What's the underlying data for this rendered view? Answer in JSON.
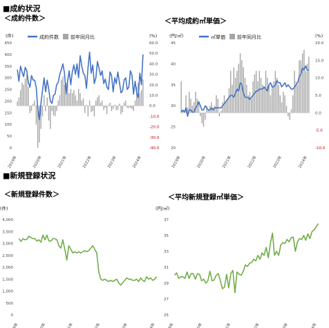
{
  "section1": {
    "title": "■成約状況"
  },
  "section2": {
    "title": "■新規登録状況"
  },
  "chart_data": [
    {
      "type": "bar+line",
      "title": "＜成約件数＞",
      "ylabel_left": "(件)",
      "ylabel_right": "(%)",
      "legend": [
        "成約件数",
        "前年同月比"
      ],
      "legend_position": "top",
      "ylim_left": [
        0,
        450
      ],
      "ylim_right": [
        -40,
        60
      ],
      "yticks_left": [
        "0",
        "50",
        "100",
        "150",
        "200",
        "250",
        "300",
        "350",
        "400",
        "450"
      ],
      "yticks_right": [
        "-40.0",
        "-30.0",
        "-20.0",
        "-10.0",
        "0.0",
        "10.0",
        "20.0",
        "30.0",
        "40.0",
        "50.0",
        "60.0"
      ],
      "x_labels": [
        "2019年",
        "2020年",
        "2021年",
        "2022年",
        "2023年",
        "2024年"
      ],
      "x_range": [
        2019.5,
        2024.6
      ],
      "series": [
        {
          "name": "成約件数",
          "color": "#4472C4",
          "values": [
            335,
            285,
            350,
            325,
            305,
            345,
            330,
            280,
            260,
            310,
            290,
            290,
            260,
            165,
            120,
            190,
            245,
            300,
            240,
            290,
            250,
            200,
            190,
            225,
            230,
            270,
            280,
            315,
            335,
            360,
            320,
            230,
            285,
            330,
            270,
            325,
            355,
            315,
            360,
            300,
            395,
            350,
            320,
            310,
            255,
            345,
            410,
            320,
            355,
            275,
            300,
            370,
            340,
            310,
            330,
            275,
            295,
            260,
            250,
            325,
            310,
            240,
            300,
            275,
            325,
            280,
            235,
            245,
            290,
            300,
            250,
            260,
            330,
            310,
            230,
            285,
            235,
            215,
            320,
            270,
            400
          ]
        },
        {
          "name": "前年同月比",
          "color": "#A6A6A6",
          "values": [
            4,
            8,
            15,
            22,
            20,
            26,
            30,
            18,
            -7,
            -5,
            2,
            5,
            -18,
            -40,
            -35,
            -22,
            -10,
            10,
            -5,
            8,
            -14,
            -22,
            -5,
            -9,
            -10,
            -5,
            5,
            10,
            25,
            28,
            20,
            22,
            25,
            12,
            16,
            12,
            15,
            10,
            5,
            16,
            12,
            5,
            7,
            -7,
            1,
            -10,
            5,
            -6,
            -5,
            -10,
            5,
            8,
            10,
            3,
            5,
            -4,
            -2,
            -8,
            1,
            3,
            -5,
            -3,
            1,
            -4,
            -4,
            2,
            -8,
            -6,
            3,
            5,
            -2,
            -2,
            -2,
            -3,
            -5,
            5,
            18,
            22,
            12,
            15,
            25
          ]
        }
      ]
    },
    {
      "type": "bar+line",
      "title": "＜平均成約㎡単価＞",
      "ylabel_left": "(円/㎡)",
      "ylabel_right": "(%)",
      "legend": [
        "㎡単価",
        "前年同月比"
      ],
      "legend_position": "top",
      "ylim_left": [
        20,
        45
      ],
      "ylim_right": [
        -10,
        20
      ],
      "yticks_left": [
        "20",
        "25",
        "30",
        "35",
        "40",
        "45"
      ],
      "yticks_right": [
        "-10.0",
        "-5.0",
        "0.0",
        "5.0",
        "10.0",
        "15.0",
        "20.0"
      ],
      "x_labels": [
        "2019年",
        "2020年",
        "2021年",
        "2022年",
        "2023年",
        "2024年"
      ],
      "x_range": [
        2019.5,
        2024.6
      ],
      "series": [
        {
          "name": "㎡単価",
          "color": "#4472C4",
          "values": [
            28.5,
            29,
            28.5,
            29.5,
            27.5,
            29,
            29,
            28.5,
            28.5,
            29.5,
            30,
            31,
            30,
            29,
            29,
            30,
            29.5,
            29,
            29,
            29.5,
            29,
            29.5,
            29.5,
            29.5,
            29.5,
            29.5,
            30,
            30.5,
            31,
            31.5,
            32,
            32.5,
            32.5,
            32,
            33,
            34,
            33.5,
            35.5,
            35,
            33,
            32,
            32,
            32,
            31.5,
            32,
            32.5,
            33,
            33.5,
            33.5,
            34,
            34,
            34,
            34.5,
            34,
            33.5,
            35,
            35.5,
            34.5,
            34.5,
            35,
            36,
            35.5,
            35.5,
            34.5,
            35,
            35.5,
            34.5,
            35,
            34.5,
            34,
            34,
            34.5,
            35,
            35.5,
            37,
            37.5,
            39,
            38.5,
            39.5,
            38.5,
            38.5
          ]
        },
        {
          "name": "前年同月比",
          "color": "#A6A6A6",
          "values": [
            9,
            0.5,
            0.5,
            5,
            1.5,
            6,
            4,
            2,
            3,
            6,
            4,
            3,
            -1,
            -3,
            -4,
            -2,
            2,
            1,
            2,
            3,
            1.5,
            2,
            5,
            4,
            -1,
            0.5,
            3,
            5,
            3,
            4,
            7,
            12,
            8,
            13,
            10,
            12,
            14,
            17,
            15,
            13,
            10,
            8,
            5,
            6,
            4,
            9,
            11,
            12,
            9,
            12,
            10,
            8,
            7,
            12,
            10,
            8,
            5,
            8,
            9,
            12,
            10,
            8,
            5,
            3,
            6,
            5,
            2,
            -1,
            -2,
            1,
            5,
            12,
            9,
            8,
            15,
            15,
            17,
            18,
            12,
            14,
            16
          ]
        }
      ]
    },
    {
      "type": "line",
      "title": "＜新規登録件数＞",
      "ylabel": "(件)",
      "ylim": [
        0,
        4000
      ],
      "yticks": [
        "0",
        "500",
        "1,000",
        "1,500",
        "2,000",
        "2,500",
        "3,000",
        "3,500",
        "4,000"
      ],
      "x_labels": [
        "2019年",
        "2020年",
        "2021年",
        "2022年",
        "2023年",
        "2024年"
      ],
      "x_range": [
        2019.5,
        2024.6
      ],
      "series": [
        {
          "name": "新規登録件数",
          "color": "#70AD47",
          "values": [
            3200,
            3080,
            3200,
            3150,
            3180,
            3300,
            3250,
            3200,
            3200,
            3100,
            3150,
            3050,
            3350,
            3150,
            3350,
            3100,
            3100,
            3200,
            3200,
            3150,
            2900,
            2800,
            3150,
            2750,
            2300,
            2900,
            2750,
            2600,
            2650,
            2600,
            2650,
            2600,
            2650,
            2700,
            2650,
            2700,
            2800,
            2900,
            2750,
            2600,
            1800,
            1500,
            1450,
            1500,
            1450,
            1400,
            1450,
            1400,
            1450,
            1500,
            1350,
            1250,
            1350,
            1450,
            1550,
            1500,
            1500,
            1450,
            1450,
            1500,
            1400,
            1550,
            1450,
            1400,
            1600,
            1500,
            1550,
            1450,
            1500,
            1600
          ]
        }
      ]
    },
    {
      "type": "line",
      "title": "＜平均新規登録㎡単価＞",
      "ylabel": "(円/㎡)",
      "ylim": [
        25,
        37
      ],
      "yticks": [
        "25",
        "27",
        "29",
        "31",
        "33",
        "35",
        "37"
      ],
      "x_labels": [
        "2019年",
        "2020年",
        "2021年",
        "2022年",
        "2023年",
        "2024年"
      ],
      "x_range": [
        2019.5,
        2024.6
      ],
      "series": [
        {
          "name": "新規登録㎡単価",
          "color": "#70AD47",
          "values": [
            30,
            30.3,
            29.6,
            29.8,
            29.8,
            29.6,
            30.4,
            29.6,
            30.2,
            30.2,
            29.5,
            30.2,
            30.1,
            29.3,
            29.5,
            29,
            29.3,
            30.5,
            29.3,
            29.4,
            30,
            30.2,
            29.3,
            28.3,
            28.5,
            30.1,
            28.4,
            30.2,
            30.6,
            27.8,
            30.4,
            30.1,
            30,
            30.5,
            31.3,
            31.1,
            31.5,
            31.6,
            32,
            31.8,
            32.5,
            32,
            32.8,
            32.5,
            33.5,
            32.2,
            34,
            35.3,
            32.5,
            33,
            32.5,
            33.8,
            34.1,
            34,
            34.5,
            34.2,
            34.7,
            34.8,
            33,
            34.2,
            34.6,
            34.5,
            35,
            34.4,
            35.2,
            34.6,
            35.5,
            35.7,
            36.1,
            36.5
          ]
        }
      ]
    }
  ]
}
